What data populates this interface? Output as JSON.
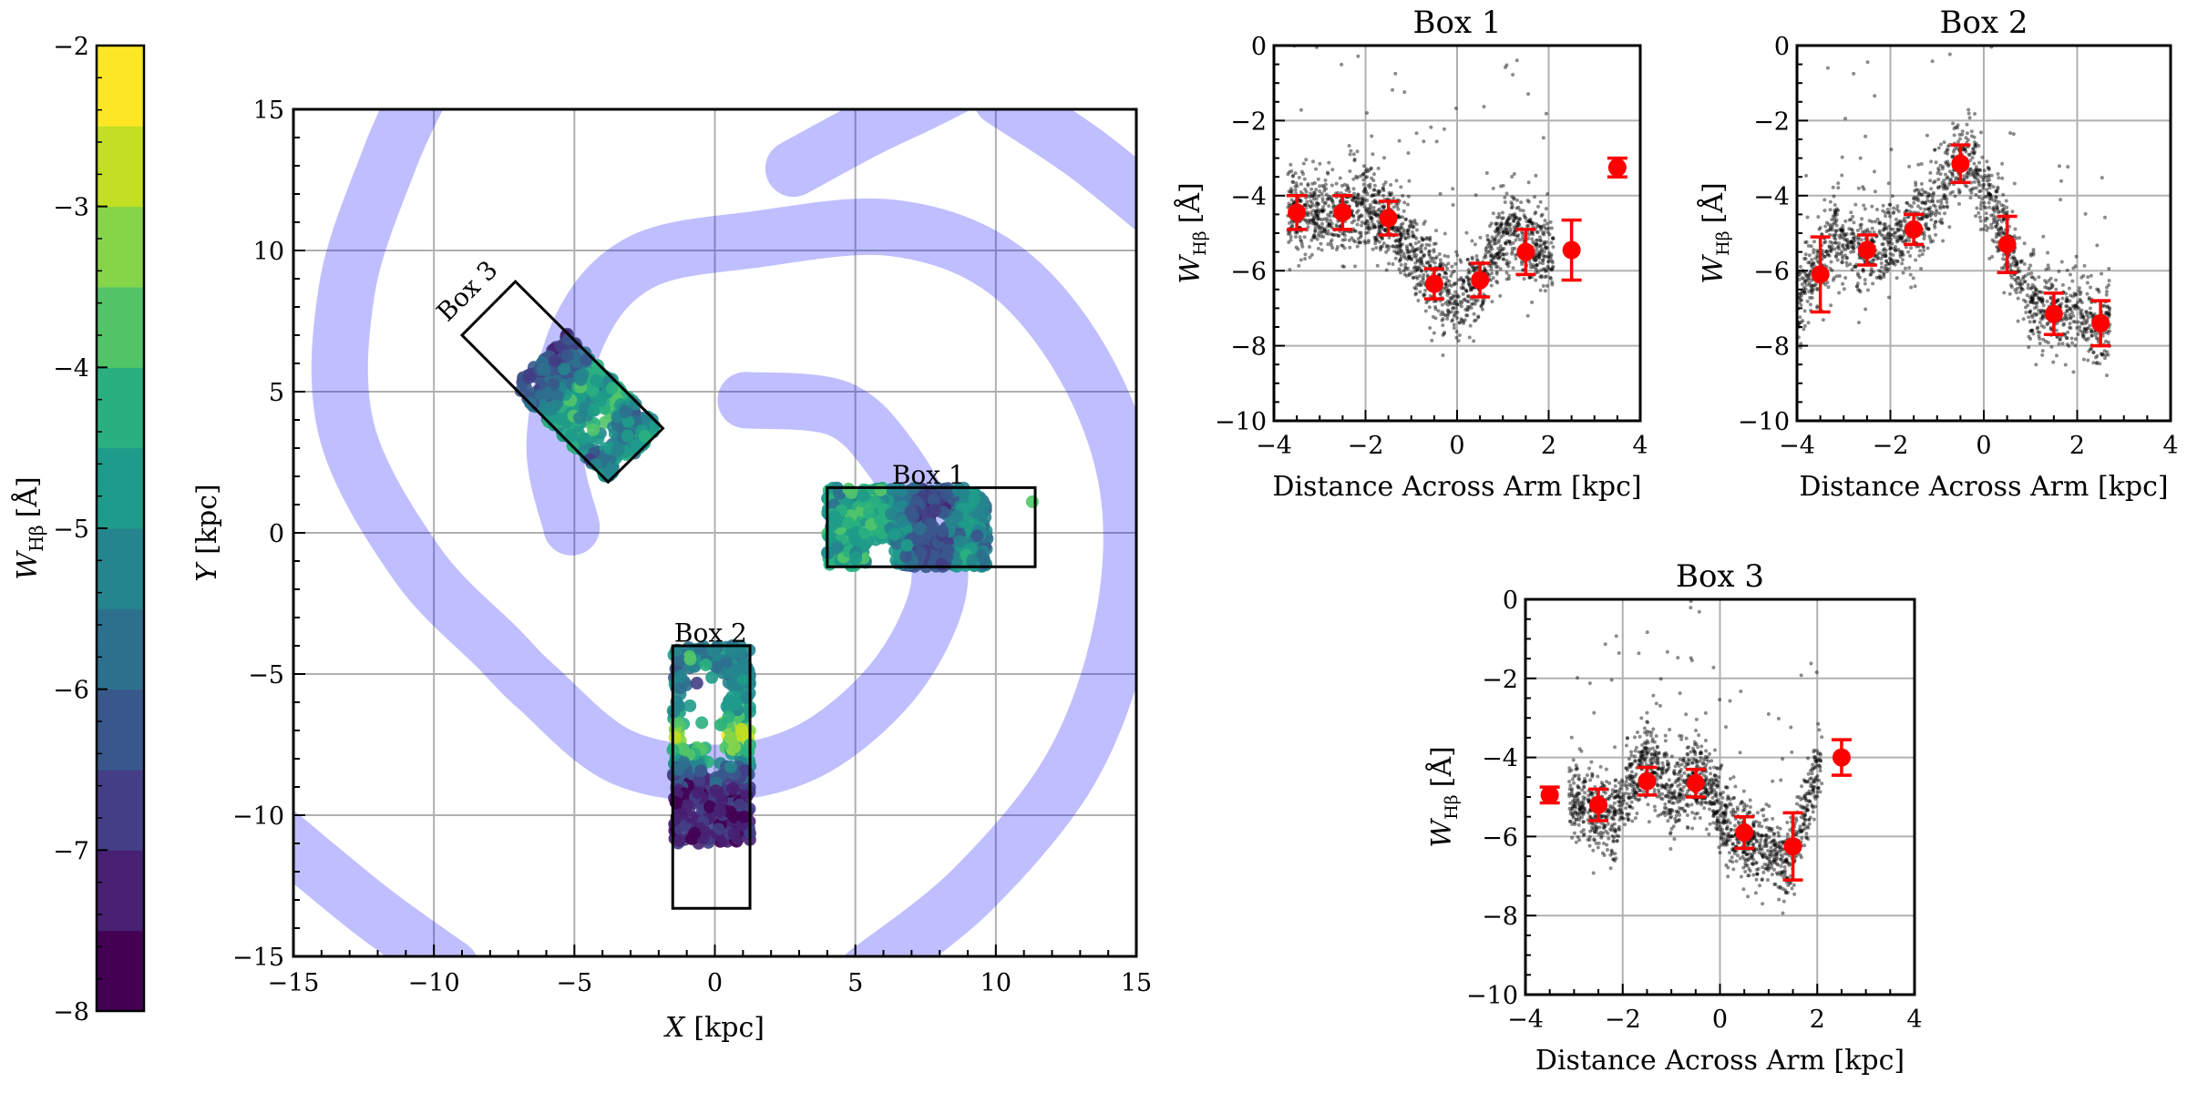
{
  "colorbar": {
    "label": {
      "symbol": "W",
      "subscript": "Hβ",
      "unit": "[Å]"
    },
    "range": [
      -8,
      -2
    ],
    "ticks": [
      -8,
      -7,
      -6,
      -5,
      -4,
      -3,
      -2
    ],
    "bin_width": 0.5,
    "colors": [
      "#440154",
      "#482173",
      "#433e85",
      "#38588c",
      "#2d708e",
      "#25858e",
      "#1e9b8a",
      "#2ab07f",
      "#52c569",
      "#86d549",
      "#c2df23",
      "#fde725"
    ]
  },
  "map": {
    "xlabel": {
      "symbol": "X",
      "unit": "[kpc]"
    },
    "ylabel": {
      "symbol": "Y",
      "unit": "[kpc]"
    },
    "xlim": [
      -15,
      15
    ],
    "ylim": [
      -15,
      15
    ],
    "ticks": [
      -15,
      -10,
      -5,
      0,
      5,
      10,
      15
    ],
    "grid": true,
    "arm_color": "#0000ff",
    "arms": [
      [
        [
          1.1,
          4.7
        ],
        [
          4.4,
          4.4
        ],
        [
          6.3,
          2.6
        ],
        [
          7.7,
          0
        ],
        [
          7.9,
          -2.3
        ],
        [
          6.3,
          -5.3
        ],
        [
          3.4,
          -7.7
        ],
        [
          0.1,
          -8.5
        ],
        [
          -3.4,
          -7.9
        ],
        [
          -6.3,
          -5.5
        ],
        [
          -7.7,
          -4.1
        ],
        [
          -10.6,
          -1.1
        ],
        [
          -13.1,
          3.6
        ],
        [
          -13.1,
          8.6
        ],
        [
          -11.6,
          13.2
        ],
        [
          -10.4,
          15.8
        ]
      ],
      [
        [
          -5.1,
          0.2
        ],
        [
          -5.7,
          3.2
        ],
        [
          -4.8,
          7.2
        ],
        [
          -2.6,
          9.6
        ],
        [
          1.5,
          10.4
        ],
        [
          6.3,
          10.8
        ],
        [
          10.2,
          9.4
        ],
        [
          13.1,
          6
        ],
        [
          14.7,
          1.6
        ],
        [
          14.5,
          -3.3
        ],
        [
          12.7,
          -8.3
        ],
        [
          9.2,
          -12.6
        ],
        [
          5.4,
          -15.6
        ]
      ],
      [
        [
          2.8,
          12.9
        ],
        [
          5.4,
          14.3
        ],
        [
          7.3,
          15.2
        ],
        [
          8.5,
          15.8
        ]
      ],
      [
        [
          10.2,
          15.4
        ],
        [
          13.1,
          13.5
        ],
        [
          15.6,
          11.5
        ]
      ],
      [
        [
          -15.5,
          -10.7
        ],
        [
          -12.2,
          -13.4
        ],
        [
          -9.4,
          -15.4
        ]
      ]
    ],
    "boxes": [
      {
        "label": "Box 1",
        "corners": [
          [
            4,
            -1.2
          ],
          [
            11.4,
            -1.2
          ],
          [
            11.4,
            1.6
          ],
          [
            4,
            1.6
          ]
        ]
      },
      {
        "label": "Box 2",
        "corners": [
          [
            -1.5,
            -13.3
          ],
          [
            1.25,
            -13.3
          ],
          [
            1.25,
            -4
          ],
          [
            -1.5,
            -4
          ]
        ]
      },
      {
        "label": "Box 3",
        "corners": [
          [
            -9,
            7
          ],
          [
            -7.1,
            8.9
          ],
          [
            -1.85,
            3.7
          ],
          [
            -3.8,
            1.8
          ]
        ]
      }
    ]
  },
  "chart_data": [
    {
      "type": "scatter",
      "title": "Box 1",
      "xlabel": "Distance Across Arm [kpc]",
      "ylabel": {
        "symbol": "W",
        "subscript": "Hβ",
        "unit": "[Å]"
      },
      "xlim": [
        -4,
        4
      ],
      "ylim": [
        -10,
        0
      ],
      "xticks": [
        -4,
        -2,
        0,
        2,
        4
      ],
      "yticks": [
        -10,
        -8,
        -6,
        -4,
        -2,
        0
      ],
      "grid": true,
      "binned": {
        "color": "#ff0000",
        "x": [
          -3.5,
          -2.5,
          -1.5,
          -0.5,
          0.5,
          1.5,
          2.5,
          3.5
        ],
        "y": [
          -4.45,
          -4.45,
          -4.6,
          -6.35,
          -6.25,
          -5.5,
          -5.45,
          -3.25
        ],
        "yerr": [
          0.45,
          0.45,
          0.45,
          0.4,
          0.45,
          0.6,
          0.8,
          0.25
        ]
      },
      "points": {
        "color": "#000000",
        "trend_x": [
          -3.7,
          -3,
          -2.5,
          -2,
          -1.5,
          -1,
          -0.5,
          0,
          0.5,
          0.8,
          1.2,
          1.6,
          2.1
        ],
        "trend_y": [
          -4.5,
          -4.4,
          -4.5,
          -4.3,
          -4.7,
          -5.5,
          -6.3,
          -6.7,
          -6.4,
          -5.4,
          -4.8,
          -5.3,
          -5.6
        ],
        "spread": 0.55
      }
    },
    {
      "type": "scatter",
      "title": "Box 2",
      "xlabel": "Distance Across Arm [kpc]",
      "ylabel": {
        "symbol": "W",
        "subscript": "Hβ",
        "unit": "[Å]"
      },
      "xlim": [
        -4,
        4
      ],
      "ylim": [
        -10,
        0
      ],
      "xticks": [
        -4,
        -2,
        0,
        2,
        4
      ],
      "yticks": [
        -10,
        -8,
        -6,
        -4,
        -2,
        0
      ],
      "grid": true,
      "binned": {
        "color": "#ff0000",
        "x": [
          -3.5,
          -2.5,
          -1.5,
          -0.5,
          0.5,
          1.5,
          2.5
        ],
        "y": [
          -6.1,
          -5.45,
          -4.9,
          -3.15,
          -5.3,
          -7.15,
          -7.4
        ],
        "yerr": [
          1.0,
          0.4,
          0.4,
          0.5,
          0.75,
          0.55,
          0.6
        ]
      },
      "points": {
        "color": "#000000",
        "trend_x": [
          -4,
          -3.6,
          -3.2,
          -2.6,
          -2,
          -1.5,
          -1,
          -0.6,
          -0.2,
          0.3,
          0.8,
          1.2,
          1.6,
          2,
          2.4,
          2.7
        ],
        "trend_y": [
          -7,
          -6,
          -5,
          -5.5,
          -5.2,
          -4.8,
          -4.3,
          -3,
          -3.2,
          -4.6,
          -6.2,
          -7,
          -7.2,
          -7.1,
          -7.5,
          -7.2
        ],
        "spread": 0.55
      }
    },
    {
      "type": "scatter",
      "title": "Box 3",
      "xlabel": "Distance Across Arm [kpc]",
      "ylabel": {
        "symbol": "W",
        "subscript": "Hβ",
        "unit": "[Å]"
      },
      "xlim": [
        -4,
        4
      ],
      "ylim": [
        -10,
        0
      ],
      "xticks": [
        -4,
        -2,
        0,
        2,
        4
      ],
      "yticks": [
        -10,
        -8,
        -6,
        -4,
        -2,
        0
      ],
      "grid": true,
      "binned": {
        "color": "#ff0000",
        "x": [
          -3.5,
          -2.5,
          -1.5,
          -0.5,
          0.5,
          1.5,
          2.5
        ],
        "y": [
          -4.95,
          -5.2,
          -4.6,
          -4.65,
          -5.9,
          -6.25,
          -4.0
        ],
        "yerr": [
          0.2,
          0.4,
          0.35,
          0.35,
          0.4,
          0.85,
          0.45
        ]
      },
      "points": {
        "color": "#000000",
        "trend_x": [
          -3.1,
          -2.6,
          -2.2,
          -1.8,
          -1.4,
          -1,
          -0.6,
          -0.3,
          0.1,
          0.5,
          1,
          1.4,
          1.7,
          2.1
        ],
        "trend_y": [
          -4.9,
          -5.4,
          -5.6,
          -4.6,
          -4.0,
          -5.0,
          -4.5,
          -4.6,
          -5.6,
          -6.1,
          -6.3,
          -6.6,
          -5.6,
          -4.0
        ],
        "spread": 0.5
      }
    }
  ]
}
